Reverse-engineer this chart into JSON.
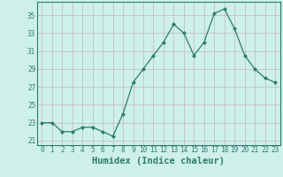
{
  "x": [
    0,
    1,
    2,
    3,
    4,
    5,
    6,
    7,
    8,
    9,
    10,
    11,
    12,
    13,
    14,
    15,
    16,
    17,
    18,
    19,
    20,
    21,
    22,
    23
  ],
  "y": [
    23,
    23,
    22,
    22,
    22.5,
    22.5,
    22,
    21.5,
    24,
    27.5,
    29,
    30.5,
    32,
    34,
    33,
    30.5,
    32,
    35.2,
    35.7,
    33.5,
    30.5,
    29,
    28,
    27.5
  ],
  "line_color": "#2a7d6e",
  "marker": "D",
  "marker_size": 2.0,
  "bg_color": "#cef0ea",
  "grid_color": "#c0a8a8",
  "title": "",
  "xlabel": "Humidex (Indice chaleur)",
  "ylabel": "",
  "xlim": [
    -0.5,
    23.5
  ],
  "ylim": [
    20.5,
    36.5
  ],
  "yticks": [
    21,
    23,
    25,
    27,
    29,
    31,
    33,
    35
  ],
  "xticks": [
    0,
    1,
    2,
    3,
    4,
    5,
    6,
    7,
    8,
    9,
    10,
    11,
    12,
    13,
    14,
    15,
    16,
    17,
    18,
    19,
    20,
    21,
    22,
    23
  ],
  "xtick_labels": [
    "0",
    "1",
    "2",
    "3",
    "4",
    "5",
    "6",
    "7",
    "8",
    "9",
    "10",
    "11",
    "12",
    "13",
    "14",
    "15",
    "16",
    "17",
    "18",
    "19",
    "20",
    "21",
    "22",
    "23"
  ],
  "tick_color": "#2a7d6e",
  "axis_color": "#2a7d6e",
  "tick_fontsize": 5.5,
  "xlabel_fontsize": 7.5
}
